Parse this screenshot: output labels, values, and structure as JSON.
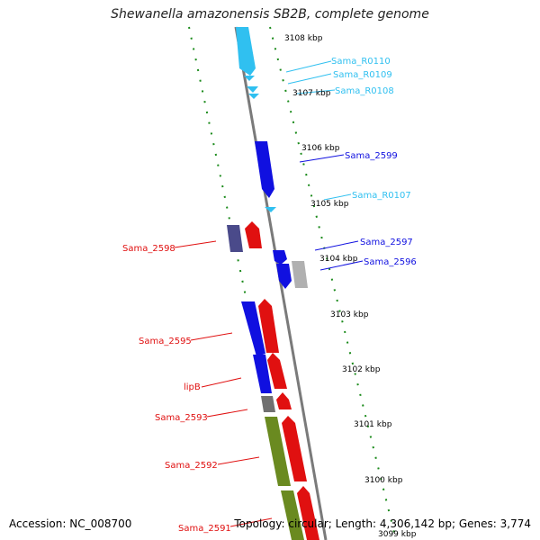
{
  "title": "Shewanella amazonensis SB2B, complete genome",
  "footer": {
    "accession": "Accession: NC_008700",
    "topology": "Topology: circular; Length: 4,306,142 bp; Genes: 3,774"
  },
  "colors": {
    "backbone": "#7a7a7a",
    "ticks": "#1a8a1a",
    "cds_blue": "#1010e0",
    "cds_red": "#e01010",
    "rna_cyan": "#30c0f0",
    "olive": "#6a8a20",
    "grey": "#808080",
    "dark_slate": "#4a4a8a"
  },
  "kbp_ticks": [
    "3108 kbp",
    "3107 kbp",
    "3106 kbp",
    "3105 kbp",
    "3104 kbp",
    "3103 kbp",
    "3102 kbp",
    "3101 kbp",
    "3100 kbp",
    "3099 kbp"
  ],
  "gene_labels": {
    "Sama_R0110": "Sama_R0110",
    "Sama_R0109": "Sama_R0109",
    "Sama_R0108": "Sama_R0108",
    "Sama_2599": "Sama_2599",
    "Sama_R0107": "Sama_R0107",
    "Sama_2597": "Sama_2597",
    "Sama_2596": "Sama_2596",
    "Sama_2598": "Sama_2598",
    "Sama_2595": "Sama_2595",
    "lipB": "lipB",
    "Sama_2593": "Sama_2593",
    "Sama_2592": "Sama_2592",
    "Sama_2591": "Sama_2591"
  }
}
